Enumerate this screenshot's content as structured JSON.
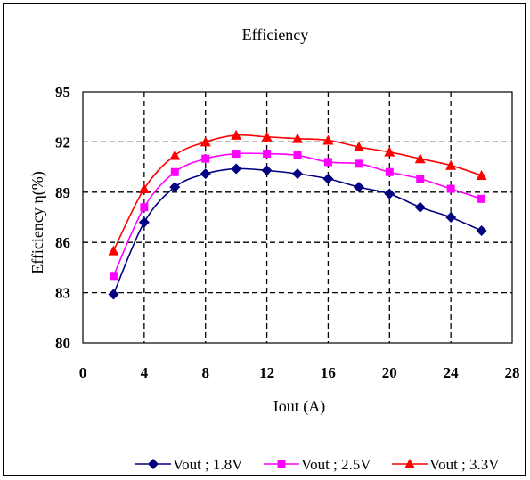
{
  "chart_data": {
    "type": "line",
    "title": "Efficiency",
    "xlabel": "Iout (A)",
    "ylabel": "Efficiency η(%)",
    "xlim": [
      0,
      28
    ],
    "ylim": [
      80,
      95
    ],
    "xticks": [
      0,
      4,
      8,
      12,
      16,
      20,
      24,
      28
    ],
    "yticks": [
      80,
      83,
      86,
      89,
      92,
      95
    ],
    "grid": true,
    "legend_position": "bottom",
    "series": [
      {
        "name": "Vout ; 1.8V",
        "color": "#000080",
        "marker": "diamond",
        "x": [
          2,
          4,
          6,
          8,
          10,
          12,
          14,
          16,
          18,
          20,
          22,
          24,
          26
        ],
        "y": [
          82.9,
          87.2,
          89.3,
          90.1,
          90.4,
          90.3,
          90.1,
          89.8,
          89.3,
          88.9,
          88.1,
          87.5,
          86.7
        ]
      },
      {
        "name": "Vout ; 2.5V",
        "color": "#ff00ff",
        "marker": "square",
        "x": [
          2,
          4,
          6,
          8,
          10,
          12,
          14,
          16,
          18,
          20,
          22,
          24,
          26
        ],
        "y": [
          84.0,
          88.1,
          90.2,
          91.0,
          91.3,
          91.3,
          91.2,
          90.8,
          90.7,
          90.2,
          89.8,
          89.2,
          88.6
        ]
      },
      {
        "name": "Vout ; 3.3V",
        "color": "#ff0000",
        "marker": "triangle",
        "x": [
          2,
          4,
          6,
          8,
          10,
          12,
          14,
          16,
          18,
          20,
          22,
          24,
          26
        ],
        "y": [
          85.5,
          89.2,
          91.2,
          92.0,
          92.4,
          92.3,
          92.2,
          92.1,
          91.7,
          91.4,
          91.0,
          90.6,
          90.0
        ]
      }
    ]
  }
}
